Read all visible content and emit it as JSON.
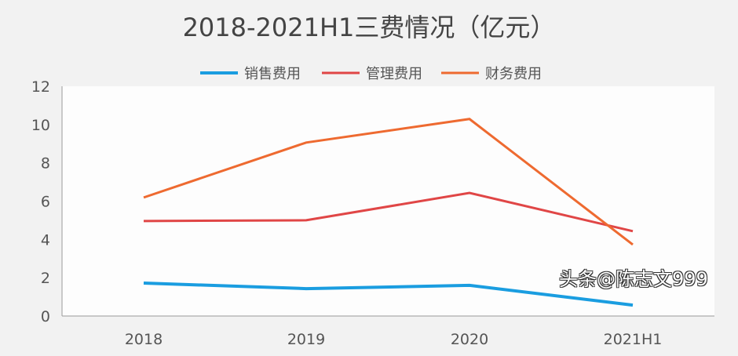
{
  "chart_data": {
    "type": "line",
    "title": "2018-2021H1三费情况（亿元）",
    "categories": [
      "2018",
      "2019",
      "2020",
      "2021H1"
    ],
    "series": [
      {
        "name": "销售费用",
        "color": "#1a9de0",
        "values": [
          1.72,
          1.43,
          1.6,
          0.57
        ]
      },
      {
        "name": "管理费用",
        "color": "#e04646",
        "values": [
          4.96,
          5.0,
          6.43,
          4.43
        ]
      },
      {
        "name": "财务费用",
        "color": "#ee6a30",
        "values": [
          6.19,
          9.06,
          10.29,
          3.73
        ]
      }
    ],
    "ylim": [
      0,
      12
    ],
    "yticks": [
      0,
      2,
      4,
      6,
      8,
      10,
      12
    ],
    "grid": false,
    "legend": "top"
  },
  "watermark": "头条@陈志文999"
}
